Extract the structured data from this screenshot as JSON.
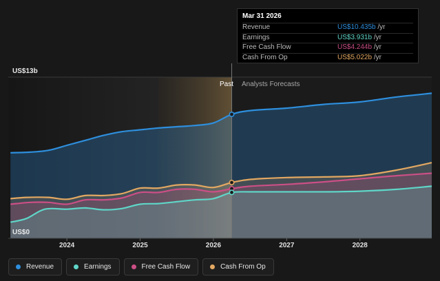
{
  "colors": {
    "revenue": "#2e8fde",
    "earnings": "#5fd6c8",
    "fcf": "#cc4f86",
    "cfo": "#e3a862"
  },
  "chart_data": {
    "type": "line",
    "y_top_label": "US$13b",
    "y_bottom_label": "US$0",
    "ylim": [
      0,
      13
    ],
    "xlim": [
      2023.2,
      2028.98
    ],
    "x_ticks": [
      {
        "value": 2024,
        "label": "2024"
      },
      {
        "value": 2025,
        "label": "2025"
      },
      {
        "value": 2026,
        "label": "2026"
      },
      {
        "value": 2027,
        "label": "2027"
      },
      {
        "value": 2028,
        "label": "2028"
      }
    ],
    "divider_x": 2026.25,
    "highlight_start_x": 2025.25,
    "past_label": "Past",
    "forecast_label": "Analysts Forecasts",
    "series": [
      {
        "key": "revenue",
        "name": "Revenue",
        "points": [
          [
            2023.23,
            6.9
          ],
          [
            2023.5,
            6.95
          ],
          [
            2023.75,
            7.1
          ],
          [
            2024.0,
            7.5
          ],
          [
            2024.25,
            7.9
          ],
          [
            2024.5,
            8.3
          ],
          [
            2024.75,
            8.6
          ],
          [
            2025.0,
            8.75
          ],
          [
            2025.25,
            8.9
          ],
          [
            2025.5,
            9.0
          ],
          [
            2025.75,
            9.1
          ],
          [
            2026.0,
            9.3
          ],
          [
            2026.25,
            10.0
          ],
          [
            2026.5,
            10.3
          ],
          [
            2027.0,
            10.5
          ],
          [
            2027.5,
            10.8
          ],
          [
            2028.0,
            11.0
          ],
          [
            2028.5,
            11.4
          ],
          [
            2028.98,
            11.7
          ]
        ]
      },
      {
        "key": "cfo",
        "name": "Cash From Op",
        "points": [
          [
            2023.23,
            3.2
          ],
          [
            2023.45,
            3.3
          ],
          [
            2023.75,
            3.3
          ],
          [
            2024.0,
            3.15
          ],
          [
            2024.25,
            3.45
          ],
          [
            2024.5,
            3.45
          ],
          [
            2024.75,
            3.6
          ],
          [
            2025.0,
            4.05
          ],
          [
            2025.25,
            4.05
          ],
          [
            2025.5,
            4.3
          ],
          [
            2025.75,
            4.3
          ],
          [
            2026.0,
            4.1
          ],
          [
            2026.25,
            4.5
          ],
          [
            2026.5,
            4.75
          ],
          [
            2027.0,
            4.9
          ],
          [
            2027.5,
            4.95
          ],
          [
            2028.0,
            5.05
          ],
          [
            2028.5,
            5.5
          ],
          [
            2028.98,
            6.1
          ]
        ]
      },
      {
        "key": "fcf",
        "name": "Free Cash Flow",
        "points": [
          [
            2023.23,
            2.75
          ],
          [
            2023.5,
            2.9
          ],
          [
            2023.75,
            2.9
          ],
          [
            2024.0,
            2.75
          ],
          [
            2024.25,
            3.1
          ],
          [
            2024.5,
            3.1
          ],
          [
            2024.75,
            3.25
          ],
          [
            2025.0,
            3.7
          ],
          [
            2025.25,
            3.7
          ],
          [
            2025.5,
            3.95
          ],
          [
            2025.75,
            3.95
          ],
          [
            2026.0,
            3.75
          ],
          [
            2026.25,
            4.0
          ],
          [
            2026.5,
            4.2
          ],
          [
            2027.0,
            4.35
          ],
          [
            2027.5,
            4.55
          ],
          [
            2028.0,
            4.8
          ],
          [
            2028.5,
            5.05
          ],
          [
            2028.98,
            5.25
          ]
        ]
      },
      {
        "key": "earnings",
        "name": "Earnings",
        "points": [
          [
            2023.23,
            1.3
          ],
          [
            2023.45,
            1.6
          ],
          [
            2023.7,
            2.35
          ],
          [
            2024.0,
            2.35
          ],
          [
            2024.25,
            2.45
          ],
          [
            2024.5,
            2.3
          ],
          [
            2024.75,
            2.4
          ],
          [
            2025.0,
            2.75
          ],
          [
            2025.25,
            2.8
          ],
          [
            2025.5,
            2.95
          ],
          [
            2025.75,
            3.1
          ],
          [
            2026.0,
            3.2
          ],
          [
            2026.25,
            3.7
          ],
          [
            2026.5,
            3.75
          ],
          [
            2027.0,
            3.75
          ],
          [
            2027.5,
            3.75
          ],
          [
            2028.0,
            3.8
          ],
          [
            2028.5,
            3.95
          ],
          [
            2028.98,
            4.2
          ]
        ]
      }
    ]
  },
  "tooltip": {
    "date": "Mar 31 2026",
    "rows": [
      {
        "key": "revenue",
        "label": "Revenue",
        "value": "US$10.435b",
        "unit": "/yr"
      },
      {
        "key": "earnings",
        "label": "Earnings",
        "value": "US$3.931b",
        "unit": "/yr"
      },
      {
        "key": "fcf",
        "label": "Free Cash Flow",
        "value": "US$4.244b",
        "unit": "/yr"
      },
      {
        "key": "cfo",
        "label": "Cash From Op",
        "value": "US$5.022b",
        "unit": "/yr"
      }
    ]
  },
  "legend": [
    {
      "key": "revenue",
      "label": "Revenue"
    },
    {
      "key": "earnings",
      "label": "Earnings"
    },
    {
      "key": "fcf",
      "label": "Free Cash Flow"
    },
    {
      "key": "cfo",
      "label": "Cash From Op"
    }
  ]
}
